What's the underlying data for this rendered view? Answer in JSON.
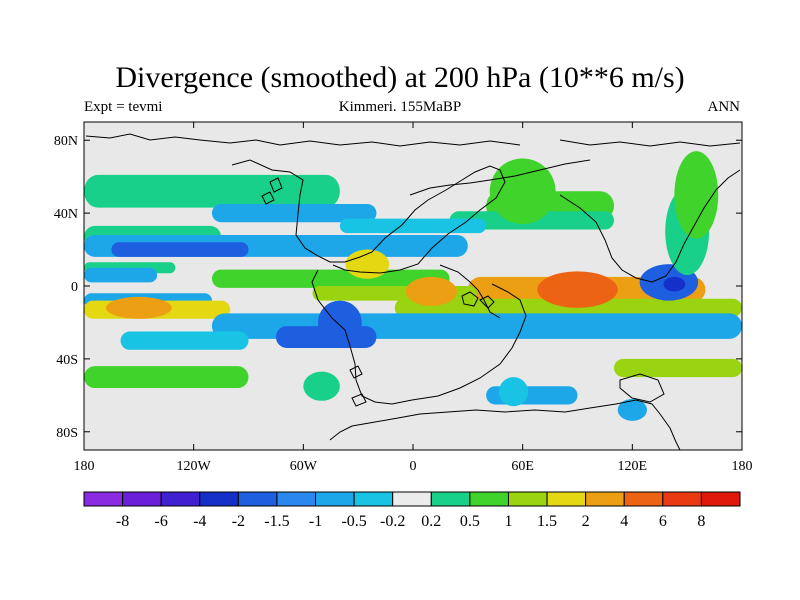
{
  "title": "Divergence (smoothed) at 200 hPa (10**6 m/s)",
  "left_label": "Expt = tevmi",
  "center_label": "Kimmeri. 155MaBP",
  "right_label": "ANN",
  "colors": {
    "ocean_bg": "#e8e8e8",
    "coast": "#000000"
  },
  "map": {
    "lon_range": [
      -180,
      180
    ],
    "lat_range": [
      -90,
      90
    ],
    "x_ticks": [
      "180",
      "120W",
      "60W",
      "0",
      "60E",
      "120E",
      "180"
    ],
    "y_ticks": [
      "80N",
      "40N",
      "0",
      "40S",
      "80S"
    ]
  },
  "chart_data": {
    "type": "heatmap",
    "variable": "Divergence (smoothed) at 200 hPa",
    "units": "10**6 m/s",
    "colorbar": {
      "levels": [
        "-8",
        "-6",
        "-4",
        "-2",
        "-1.5",
        "-1",
        "-0.5",
        "-0.2",
        "0.2",
        "0.5",
        "1",
        "1.5",
        "2",
        "4",
        "6",
        "8"
      ],
      "colors": [
        "#8a2be2",
        "#6a1fd8",
        "#4020d0",
        "#1530c8",
        "#1e5fe0",
        "#2a87ee",
        "#1da7e8",
        "#19c3e3",
        "#ececec",
        "#19d08a",
        "#3fd32c",
        "#9ad30f",
        "#e3d812",
        "#ec9f12",
        "#ec6413",
        "#ea3a12",
        "#e0180c"
      ]
    },
    "bands": [
      {
        "lat": 52,
        "width": 9,
        "level": 9,
        "lon": [
          -180,
          -40
        ]
      },
      {
        "lat": 27,
        "width": 6,
        "level": 9,
        "lon": [
          -180,
          -105
        ]
      },
      {
        "lat": 22,
        "width": 6,
        "level": 6,
        "lon": [
          -180,
          30
        ]
      },
      {
        "lat": 20,
        "width": 4,
        "level": 4,
        "lon": [
          -165,
          -90
        ]
      },
      {
        "lat": 40,
        "width": 5,
        "level": 6,
        "lon": [
          -110,
          -20
        ]
      },
      {
        "lat": 44,
        "width": 8,
        "level": 10,
        "lon": [
          40,
          110
        ]
      },
      {
        "lat": 36,
        "width": 5,
        "level": 9,
        "lon": [
          20,
          110
        ]
      },
      {
        "lat": 33,
        "width": 4,
        "level": 7,
        "lon": [
          -40,
          40
        ]
      },
      {
        "lat": 10,
        "width": 3,
        "level": 9,
        "lon": [
          -180,
          -130
        ]
      },
      {
        "lat": 6,
        "width": 4,
        "level": 6,
        "lon": [
          -180,
          -140
        ]
      },
      {
        "lat": 4,
        "width": 5,
        "level": 10,
        "lon": [
          -110,
          20
        ]
      },
      {
        "lat": -2,
        "width": 7,
        "level": 13,
        "lon": [
          30,
          160
        ]
      },
      {
        "lat": -4,
        "width": 4,
        "level": 11,
        "lon": [
          -55,
          35
        ]
      },
      {
        "lat": -8,
        "width": 4,
        "level": 6,
        "lon": [
          -180,
          -110
        ]
      },
      {
        "lat": -13,
        "width": 5,
        "level": 12,
        "lon": [
          -180,
          -100
        ]
      },
      {
        "lat": -12,
        "width": 5,
        "level": 11,
        "lon": [
          -10,
          180
        ]
      },
      {
        "lat": -22,
        "width": 7,
        "level": 6,
        "lon": [
          -110,
          180
        ]
      },
      {
        "lat": -28,
        "width": 6,
        "level": 4,
        "lon": [
          -75,
          -20
        ]
      },
      {
        "lat": -30,
        "width": 5,
        "level": 7,
        "lon": [
          -160,
          -90
        ]
      },
      {
        "lat": -50,
        "width": 6,
        "level": 10,
        "lon": [
          -180,
          -90
        ]
      },
      {
        "lat": -45,
        "width": 5,
        "level": 11,
        "lon": [
          110,
          180
        ]
      },
      {
        "lat": -60,
        "width": 5,
        "level": 6,
        "lon": [
          40,
          90
        ]
      }
    ],
    "blobs": [
      {
        "lon": 60,
        "lat": 52,
        "rx": 18,
        "ry": 9,
        "level": 10
      },
      {
        "lon": 10,
        "lat": -3,
        "rx": 14,
        "ry": 4,
        "level": 13
      },
      {
        "lon": -25,
        "lat": 12,
        "rx": 12,
        "ry": 4,
        "level": 12
      },
      {
        "lon": -40,
        "lat": -20,
        "rx": 12,
        "ry": 6,
        "level": 4
      },
      {
        "lon": 140,
        "lat": 2,
        "rx": 16,
        "ry": 5,
        "level": 4
      },
      {
        "lon": 143,
        "lat": 1,
        "rx": 6,
        "ry": 2,
        "level": 3
      },
      {
        "lon": 150,
        "lat": 30,
        "rx": 12,
        "ry": 12,
        "level": 9
      },
      {
        "lon": 155,
        "lat": 50,
        "rx": 12,
        "ry": 12,
        "level": 10
      },
      {
        "lon": 90,
        "lat": -2,
        "rx": 22,
        "ry": 5,
        "level": 14
      },
      {
        "lon": -150,
        "lat": -12,
        "rx": 18,
        "ry": 3,
        "level": 13
      },
      {
        "lon": 55,
        "lat": -58,
        "rx": 8,
        "ry": 4,
        "level": 7
      },
      {
        "lon": 120,
        "lat": -68,
        "rx": 8,
        "ry": 3,
        "level": 6
      },
      {
        "lon": -50,
        "lat": -55,
        "rx": 10,
        "ry": 4,
        "level": 9
      }
    ]
  }
}
